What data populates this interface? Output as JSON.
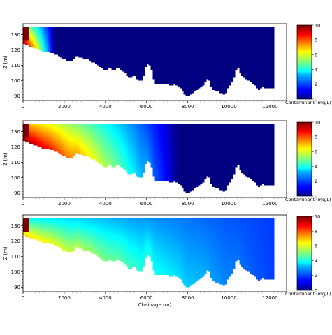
{
  "chart_data": [
    {
      "type": "heatmap",
      "panel": 1,
      "xlabel": "",
      "ylabel": "Z (m)",
      "xlim": [
        0,
        12800
      ],
      "ylim": [
        87,
        137
      ],
      "xticks": [
        0,
        2000,
        4000,
        6000,
        8000,
        10000,
        12000
      ],
      "yticks": [
        90,
        100,
        110,
        120,
        130
      ],
      "colorbar": {
        "label": "Contaminant (mg/L)",
        "range": [
          0,
          10
        ],
        "ticks": [
          0,
          2,
          4,
          6,
          8,
          10
        ],
        "colormap": "jet"
      },
      "surface_top": 135,
      "plume_front_x": 1500,
      "plume_depth_fraction": 0.9,
      "bed_profile": {
        "x": [
          0,
          200,
          400,
          600,
          800,
          1000,
          1200,
          1400,
          1600,
          1800,
          2000,
          2200,
          2400,
          2600,
          2800,
          3000,
          3200,
          3400,
          3600,
          3800,
          4000,
          4200,
          4400,
          4600,
          4800,
          5000,
          5200,
          5400,
          5600,
          5800,
          6000,
          6200,
          6400,
          6600,
          6800,
          7000,
          7200,
          7400,
          7600,
          7800,
          8000,
          8200,
          8400,
          8600,
          8800,
          9000,
          9200,
          9400,
          9600,
          9800,
          10000,
          10200,
          10400,
          10600,
          10800,
          11000,
          11200,
          11400,
          11600,
          11800,
          12000,
          12200
        ],
        "z": [
          124,
          123,
          122,
          121,
          120,
          119,
          119,
          118,
          117,
          116,
          114,
          113,
          113,
          117,
          115,
          114,
          114,
          112,
          111,
          109,
          107,
          108,
          107,
          108,
          107,
          104,
          101,
          104,
          100,
          100,
          112,
          110,
          98,
          98,
          98,
          98,
          97,
          98,
          96,
          92,
          90,
          91,
          94,
          96,
          98,
          102,
          94,
          93,
          92,
          91,
          96,
          100,
          110,
          104,
          102,
          100,
          98,
          94,
          96,
          95,
          95,
          95
        ]
      }
    },
    {
      "type": "heatmap",
      "panel": 2,
      "xlabel": "",
      "ylabel": "Z (m)",
      "xlim": [
        0,
        12800
      ],
      "ylim": [
        87,
        137
      ],
      "xticks": [
        0,
        2000,
        4000,
        6000,
        8000,
        10000,
        12000
      ],
      "yticks": [
        90,
        100,
        110,
        120,
        130
      ],
      "colorbar": {
        "label": "Contaminant (mg/L)",
        "range": [
          0,
          10
        ],
        "ticks": [
          0,
          2,
          4,
          6,
          8,
          10
        ],
        "colormap": "jet"
      },
      "surface_top": 135,
      "plume_front_x": 7500,
      "plume_depth_fraction": 0.45,
      "bed_profile": {
        "x": [
          0,
          200,
          400,
          600,
          800,
          1000,
          1200,
          1400,
          1600,
          1800,
          2000,
          2200,
          2400,
          2600,
          2800,
          3000,
          3200,
          3400,
          3600,
          3800,
          4000,
          4200,
          4400,
          4600,
          4800,
          5000,
          5200,
          5400,
          5600,
          5800,
          6000,
          6200,
          6400,
          6600,
          6800,
          7000,
          7200,
          7400,
          7600,
          7800,
          8000,
          8200,
          8400,
          8600,
          8800,
          9000,
          9200,
          9400,
          9600,
          9800,
          10000,
          10200,
          10400,
          10600,
          10800,
          11000,
          11200,
          11400,
          11600,
          11800,
          12000,
          12200
        ],
        "z": [
          124,
          123,
          122,
          121,
          120,
          119,
          119,
          118,
          117,
          116,
          114,
          113,
          113,
          117,
          115,
          114,
          114,
          112,
          111,
          109,
          107,
          108,
          107,
          108,
          107,
          104,
          101,
          104,
          100,
          100,
          112,
          110,
          98,
          98,
          98,
          98,
          97,
          98,
          96,
          92,
          90,
          91,
          94,
          96,
          98,
          102,
          94,
          93,
          92,
          91,
          96,
          100,
          110,
          104,
          102,
          100,
          98,
          94,
          96,
          95,
          95,
          95
        ]
      }
    },
    {
      "type": "heatmap",
      "panel": 3,
      "xlabel": "Chainage (m)",
      "ylabel": "Z (m)",
      "xlim": [
        0,
        12800
      ],
      "ylim": [
        87,
        137
      ],
      "xticks": [
        0,
        2000,
        4000,
        6000,
        8000,
        10000,
        12000
      ],
      "yticks": [
        90,
        100,
        110,
        120,
        130
      ],
      "colorbar": {
        "label": "Contaminant (mg/L)",
        "range": [
          0,
          10
        ],
        "ticks": [
          0,
          2,
          4,
          6,
          8,
          10
        ],
        "colormap": "jet"
      },
      "surface_top": 135,
      "plume_front_x": 12500,
      "plume_depth_fraction": 0.1,
      "bed_profile": {
        "x": [
          0,
          200,
          400,
          600,
          800,
          1000,
          1200,
          1400,
          1600,
          1800,
          2000,
          2200,
          2400,
          2600,
          2800,
          3000,
          3200,
          3400,
          3600,
          3800,
          4000,
          4200,
          4400,
          4600,
          4800,
          5000,
          5200,
          5400,
          5600,
          5800,
          6000,
          6200,
          6400,
          6600,
          6800,
          7000,
          7200,
          7400,
          7600,
          7800,
          8000,
          8200,
          8400,
          8600,
          8800,
          9000,
          9200,
          9400,
          9600,
          9800,
          10000,
          10200,
          10400,
          10600,
          10800,
          11000,
          11200,
          11400,
          11600,
          11800,
          12000,
          12200
        ],
        "z": [
          124,
          123,
          122,
          121,
          120,
          119,
          119,
          118,
          117,
          116,
          114,
          113,
          113,
          117,
          115,
          114,
          114,
          112,
          111,
          109,
          107,
          108,
          107,
          108,
          107,
          104,
          101,
          104,
          100,
          100,
          112,
          110,
          98,
          98,
          98,
          98,
          97,
          98,
          96,
          92,
          90,
          91,
          94,
          96,
          98,
          102,
          94,
          93,
          92,
          91,
          96,
          100,
          110,
          104,
          102,
          100,
          98,
          94,
          96,
          95,
          95,
          95
        ]
      }
    }
  ]
}
